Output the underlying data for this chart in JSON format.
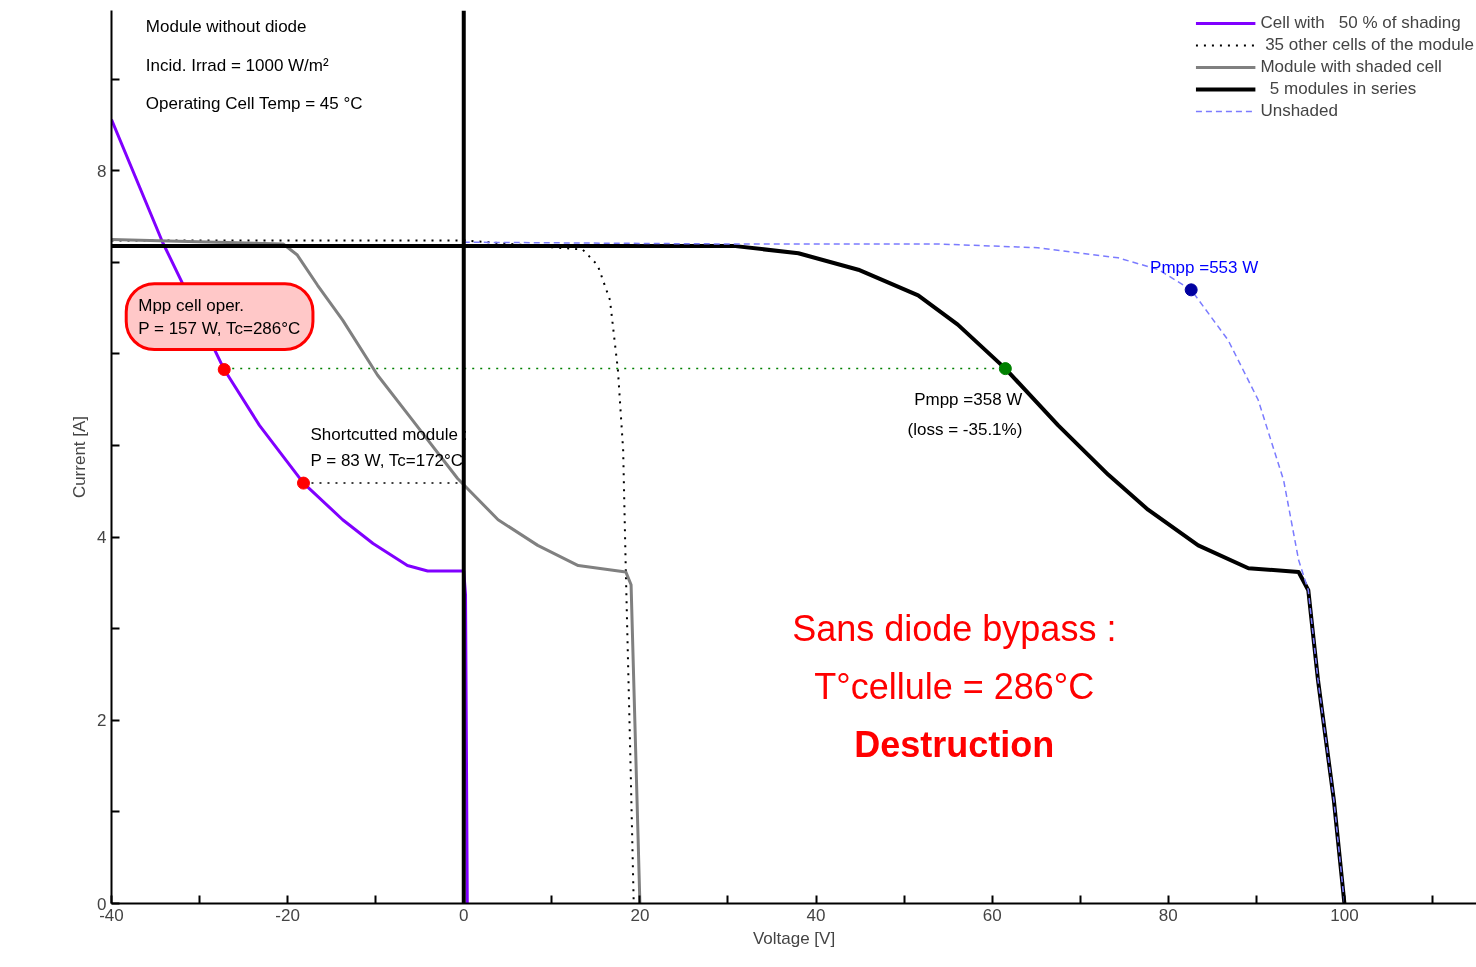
{
  "chart_data": {
    "type": "line",
    "xlabel": "Voltage [V]",
    "ylabel": "Current [A]",
    "xlim": [
      -40,
      115
    ],
    "ylim": [
      0,
      9.75
    ],
    "xticks": [
      -40,
      {
        "value": -30,
        "label": null
      },
      -20,
      {
        "value": -10,
        "label": null
      },
      0,
      {
        "value": 10,
        "label": null
      },
      20,
      {
        "value": 30,
        "label": null
      },
      40,
      {
        "value": 50,
        "label": null
      },
      60,
      {
        "value": 70,
        "label": null
      },
      80,
      {
        "value": 90,
        "label": null
      },
      100,
      {
        "value": 110,
        "label": null
      }
    ],
    "yticks": [
      0,
      {
        "value": 1,
        "label": null
      },
      2,
      {
        "value": 3,
        "label": null
      },
      4,
      {
        "value": 5,
        "label": null
      },
      {
        "value": 6,
        "label": null
      },
      {
        "value": 7,
        "label": null
      },
      8,
      {
        "value": 9,
        "label": null
      }
    ],
    "grid": false,
    "legend": "top right",
    "series": [
      {
        "name": "Cell with   50 % of shading",
        "color": "#8000ff",
        "line_style": "solid",
        "x": [
          -40,
          -34.2,
          -27.2,
          -23.2,
          -18.2,
          -13.75,
          -10.3,
          -6.4,
          -4.1,
          0,
          0.2,
          0.4
        ],
        "values": [
          8.56,
          7.22,
          5.83,
          5.22,
          4.59,
          4.19,
          3.93,
          3.69,
          3.63,
          3.63,
          3.37,
          0
        ]
      },
      {
        "name": " 35 other cells of the module",
        "color": "#000000",
        "line_style": "dotted",
        "x": [
          -40,
          0,
          13.5,
          15.2,
          16.6,
          17.5,
          18.1,
          18.4,
          18.9,
          19.3
        ],
        "values": [
          7.24,
          7.24,
          7.14,
          6.97,
          6.59,
          5.83,
          4.95,
          3.64,
          1.67,
          0
        ]
      },
      {
        "name": "Module with shaded cell",
        "color": "#808080",
        "line_style": "solid",
        "x": [
          -40,
          -20.5,
          -18.9,
          -16.6,
          -13.75,
          -9.8,
          -6.0,
          -0.7,
          3.9,
          8.4,
          13,
          18.4,
          19,
          20
        ],
        "values": [
          7.25,
          7.2,
          7.08,
          6.75,
          6.37,
          5.77,
          5.3,
          4.64,
          4.19,
          3.91,
          3.69,
          3.62,
          3.48,
          0
        ]
      },
      {
        "name": "  5 modules in series",
        "color": "#000000",
        "line_style": "solid",
        "x": [
          -40,
          30.6,
          38,
          44.8,
          51.6,
          56.1,
          61.5,
          67.5,
          73.2,
          77.7,
          83.4,
          89.1,
          94.8,
          95.9,
          97,
          98.8,
          100
        ],
        "values": [
          7.18,
          7.18,
          7.1,
          6.92,
          6.64,
          6.32,
          5.84,
          5.22,
          4.68,
          4.3,
          3.91,
          3.66,
          3.62,
          3.42,
          2.44,
          1.13,
          0
        ]
      },
      {
        "name": "Unshaded",
        "color": "#7b7bff",
        "line_style": "dashed",
        "x": [
          0,
          31.1,
          53.9,
          65.2,
          74.3,
          78.9,
          82.6,
          86.8,
          90.2,
          93.1,
          94.8,
          95.9,
          97,
          98.8,
          100
        ],
        "values": [
          7.22,
          7.2,
          7.2,
          7.16,
          7.05,
          6.92,
          6.7,
          6.15,
          5.5,
          4.62,
          3.75,
          3.42,
          2.44,
          1.13,
          0
        ]
      },
      {
        "type": "line",
        "color": "#008000",
        "line_style": "dotted",
        "x": [
          -27.2,
          61.5
        ],
        "values": [
          5.84,
          5.84
        ]
      },
      {
        "type": "line",
        "color": "#000000",
        "line_style": "dotted",
        "x": [
          -18.2,
          0
        ],
        "values": [
          4.59,
          4.59
        ]
      },
      {
        "type": "scatter",
        "marker": "circle",
        "color": "#ff0000",
        "x": [
          -27.2,
          -18.2
        ],
        "values": [
          5.83,
          4.59
        ]
      },
      {
        "type": "scatter",
        "marker": "circle",
        "color": "#008000",
        "x": [
          61.5
        ],
        "values": [
          5.84
        ]
      },
      {
        "type": "scatter",
        "marker": "circle",
        "color": "#0000a0",
        "x": [
          82.6
        ],
        "values": [
          6.7
        ]
      }
    ],
    "ref_lines": [
      {
        "axis": "x",
        "value": 0,
        "color": "#000000"
      }
    ],
    "annotations": [
      "Module without diode",
      "Incid. Irrad = 1000 W/m²",
      "Operating Cell Temp = 45 °C",
      {
        "text": "Mpp cell oper.\nP = 157 W, Tc=286°C",
        "x": -27.2,
        "y": 5.83
      },
      {
        "text": "Shortcutted module :\nP = 83 W, Tc=172°C",
        "x": -18.2,
        "y": 4.59
      },
      {
        "text": "Pmpp =358 W\n(loss = -35.1%)",
        "x": 61.5,
        "y": 5.84
      },
      {
        "text": "Pmpp =553 W",
        "x": 82.6,
        "y": 6.7
      },
      "Sans diode bypass :",
      "T°cellule = 286°C",
      "Destruction"
    ]
  }
}
